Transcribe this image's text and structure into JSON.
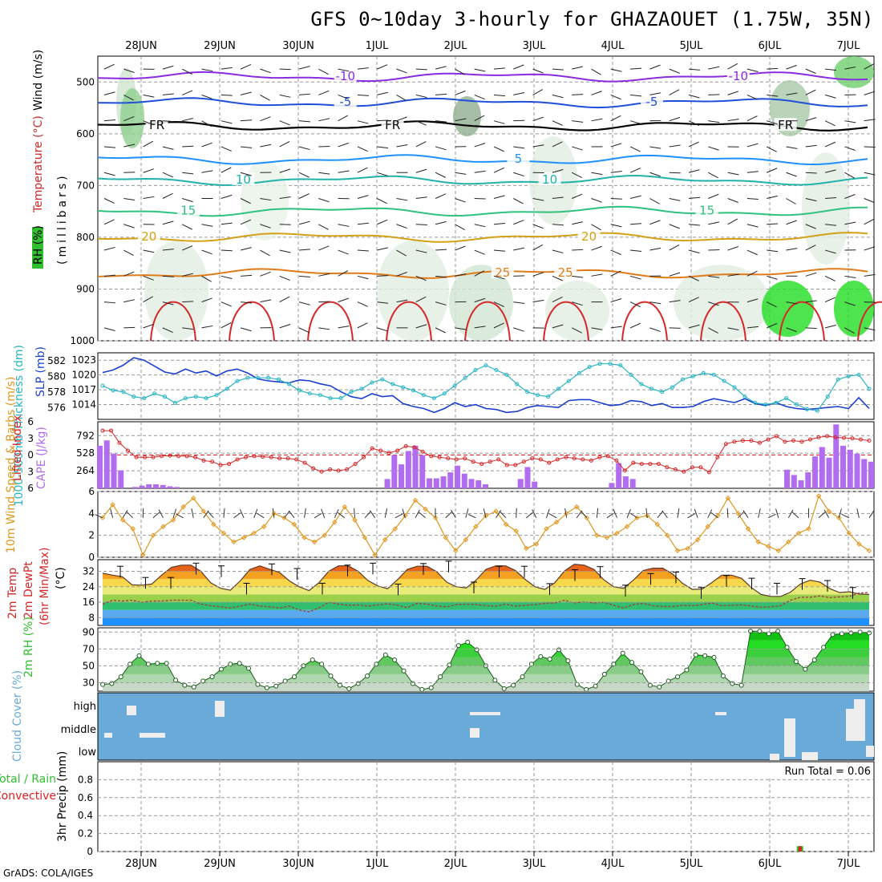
{
  "title": "GFS 0~10day 3-hourly for GHAZAOUET (1.75W, 35N)",
  "credit": "GrADS: COLA/IGES",
  "dates": [
    "28JUN",
    "29JUN",
    "30JUN",
    "1JUL",
    "2JUL",
    "3JUL",
    "4JUL",
    "5JUL",
    "6JUL",
    "7JUL"
  ],
  "colors": {
    "temp_neg10": "#8a2be2",
    "temp_neg5": "#1f4fd8",
    "freezing": "#000000",
    "temp5": "#1e90ff",
    "temp10": "#20b2aa",
    "temp15": "#2ec27e",
    "temp20": "#d4a017",
    "temp25": "#e07b1a",
    "temp30": "#d62728",
    "slp": "#1a3fd0",
    "thickness": "#29b5c4",
    "li": "#d62728",
    "cape": "#b26cf0",
    "wind": "#e0961e",
    "rh": "#2fbf2f",
    "cloud": "#6aaad8",
    "convective": "#e02020"
  },
  "chart_data": [
    {
      "type": "contour",
      "name": "upper-air",
      "ylabel": "(millibars)",
      "side_labels": [
        "RH (%)",
        "Temperature (°C)",
        "Wind (m/s)"
      ],
      "ylim": [
        1000,
        450
      ],
      "yticks": [
        500,
        600,
        700,
        800,
        900,
        1000
      ],
      "isotherms": [
        {
          "label": "-10",
          "pressure": 490,
          "labels_at_day": [
            2.6,
            7.6
          ]
        },
        {
          "label": "-5",
          "pressure": 540,
          "labels_at_day": [
            2.6,
            6.5
          ]
        },
        {
          "label": "FR",
          "pressure": 585,
          "labels_at_day": [
            0.2,
            3.2,
            8.2
          ]
        },
        {
          "label": "5",
          "pressure": 650,
          "labels_at_day": [
            4.8
          ]
        },
        {
          "label": "10",
          "pressure": 690,
          "labels_at_day": [
            1.3,
            5.2
          ]
        },
        {
          "label": "15",
          "pressure": 750,
          "labels_at_day": [
            0.6,
            7.2
          ]
        },
        {
          "label": "20",
          "pressure": 800,
          "labels_at_day": [
            0.1,
            5.7
          ]
        },
        {
          "label": "25",
          "pressure": 870,
          "labels_at_day": [
            4.6,
            5.4
          ]
        }
      ]
    },
    {
      "type": "line",
      "name": "slp-thickness",
      "left_label": "1000-500mb Thickness (dm)",
      "right_label": "SLP (mb)",
      "left_ticks": [
        576,
        578,
        580,
        582
      ],
      "right_ticks": [
        1014,
        1017,
        1020,
        1023
      ],
      "x_days": [
        0,
        0.125,
        0.25,
        0.375,
        0.5,
        0.625,
        0.75,
        0.875,
        1,
        1.125,
        1.25,
        1.375,
        1.5,
        1.625,
        1.75,
        1.875,
        2,
        2.125,
        2.25,
        2.375,
        2.5,
        2.625,
        2.75,
        2.875,
        3,
        3.125,
        3.25,
        3.375,
        3.5,
        3.625,
        3.75,
        3.875,
        4,
        4.125,
        4.25,
        4.375,
        4.5,
        4.625,
        4.75,
        4.875,
        5,
        5.125,
        5.25,
        5.375,
        5.5,
        5.625,
        5.75,
        5.875,
        6,
        6.125,
        6.25,
        6.375,
        6.5,
        6.625,
        6.75,
        6.875,
        7,
        7.125,
        7.25,
        7.375,
        7.5,
        7.625,
        7.75,
        7.875,
        8,
        8.125,
        8.25,
        8.375,
        8.5,
        8.625,
        8.75,
        8.875,
        9,
        9.125,
        9.25
      ],
      "series": [
        {
          "name": "SLP (mb)",
          "axis": "right",
          "values": [
            1020.5,
            1021,
            1022,
            1023.5,
            1023,
            1021.8,
            1020.6,
            1020.2,
            1021.2,
            1020.4,
            1020.8,
            1019.8,
            1020.8,
            1021.2,
            1020.4,
            1019.2,
            1018.8,
            1018.6,
            1018.4,
            1019,
            1018.8,
            1018.2,
            1017.8,
            1016.6,
            1015.6,
            1015.2,
            1016.2,
            1015.6,
            1015.8,
            1014.2,
            1013.6,
            1013.2,
            1012.4,
            1013.2,
            1014.4,
            1013.6,
            1014,
            1013.2,
            1013,
            1012.4,
            1012.6,
            1013.4,
            1013.8,
            1013.6,
            1013.4,
            1014.8,
            1015,
            1015,
            1014.4,
            1013.8,
            1014,
            1014.8,
            1014.6,
            1013.8,
            1014.2,
            1013.4,
            1013.4,
            1013.6,
            1014.6,
            1015.2,
            1014.8,
            1014.4,
            1015.2,
            1014.2,
            1013.8,
            1014.4,
            1013.6,
            1013.2,
            1013,
            1013.2,
            1013.4,
            1013.6,
            1013.2,
            1015.4,
            1013.2
          ]
        },
        {
          "name": "1000-500mb Thickness (dm)",
          "axis": "left",
          "values": [
            578.8,
            578.2,
            578,
            577.4,
            577.2,
            577.8,
            577.4,
            576.6,
            577.2,
            577.4,
            577.2,
            577.6,
            578.4,
            579.4,
            579.8,
            579.8,
            579.8,
            579.6,
            579,
            578.2,
            577.8,
            577.6,
            577.2,
            577.2,
            578,
            578.4,
            579.2,
            579.6,
            579,
            578.6,
            578.2,
            577.6,
            577.2,
            577.8,
            578.8,
            579.8,
            580.8,
            581.4,
            580.8,
            580.2,
            579,
            578,
            577.6,
            577.4,
            578.4,
            579.4,
            580.4,
            581.2,
            581.6,
            581.6,
            581.4,
            580.2,
            579,
            578.4,
            578,
            578.6,
            579.6,
            580,
            580.4,
            580.2,
            579.4,
            578.6,
            577.4,
            576.6,
            576.4,
            576.6,
            577.2,
            576.4,
            575.8,
            575.6,
            577.4,
            579.6,
            580,
            580.2,
            578.4
          ]
        }
      ]
    },
    {
      "type": "bar+line",
      "name": "cape-li",
      "left_label": "Lifted Index",
      "right_label": "CAPE (J/kg)",
      "li_ticks": [
        -6,
        -3,
        0,
        3,
        6
      ],
      "cape_ticks": [
        264,
        528,
        792
      ],
      "series": [
        {
          "name": "CAPE (J/kg)",
          "values": [
            640,
            720,
            520,
            270,
            0,
            20,
            40,
            60,
            60,
            50,
            30,
            20,
            0,
            0,
            0,
            0,
            0,
            0,
            0,
            0,
            0,
            0,
            0,
            0,
            0,
            0,
            0,
            0,
            0,
            0,
            0,
            0,
            0,
            0,
            0,
            0,
            0,
            0,
            0,
            0,
            0,
            140,
            500,
            360,
            560,
            640,
            500,
            150,
            150,
            180,
            240,
            340,
            220,
            140,
            120,
            60,
            0,
            0,
            0,
            0,
            140,
            320,
            100,
            0,
            0,
            0,
            0,
            0,
            0,
            0,
            0,
            0,
            0,
            80,
            380,
            180,
            140,
            0,
            0,
            0,
            0,
            0,
            0,
            0,
            0,
            0,
            0,
            0,
            0,
            0,
            0,
            0,
            0,
            0,
            0,
            0,
            0,
            0,
            280,
            200,
            120,
            240,
            480,
            620,
            460,
            960,
            640,
            580,
            520,
            440,
            400
          ]
        },
        {
          "name": "Lifted Index",
          "values": [
            -4.4,
            -4.4,
            -2.2,
            -0.8,
            0.4,
            0.4,
            0.4,
            0.2,
            0.1,
            0.2,
            0.2,
            0.4,
            1,
            1.2,
            1.8,
            1.6,
            0.8,
            0.4,
            0.2,
            0.3,
            0.4,
            0.6,
            0.6,
            0.8,
            1.4,
            2.4,
            3,
            2.6,
            2.8,
            2.6,
            1.6,
            0.4,
            -1.2,
            -0.8,
            -0.4,
            -0.8,
            -1.6,
            -1.4,
            -0.6,
            0.2,
            0.4,
            0.6,
            0.8,
            0.6,
            1.2,
            1.6,
            1.2,
            0.8,
            1.8,
            1.8,
            1.2,
            0.6,
            0.8,
            1.4,
            0.8,
            0.4,
            0.6,
            0.8,
            1,
            0.4,
            0.2,
            1,
            2.8,
            1.4,
            1.6,
            1.6,
            1.6,
            2.2,
            2.6,
            3,
            2.2,
            2.2,
            3.1,
            0.4,
            -2,
            -2.4,
            -2.6,
            -2.6,
            -2.2,
            -2.8,
            -3.4,
            -2.4,
            -2.6,
            -2.4,
            -2.8,
            -3.2,
            -3.4,
            -3.2,
            -3.1,
            -3,
            -2.8,
            -2.6
          ]
        }
      ]
    },
    {
      "type": "line",
      "name": "wind-10m",
      "ylabel": "10m Wind Speed & Barbs (m/s)",
      "yticks": [
        0,
        2,
        4,
        6
      ],
      "series": [
        {
          "name": "10m Wind Speed (m/s)",
          "values": [
            3.6,
            4.8,
            3.4,
            2.6,
            0.2,
            2,
            2.8,
            3.4,
            4.6,
            5.4,
            4.2,
            3,
            2.2,
            1.4,
            1.8,
            2.2,
            2.8,
            4,
            3.6,
            3,
            1.8,
            1.4,
            2,
            3.2,
            4.6,
            3.4,
            1.8,
            0.2,
            1.6,
            2.6,
            3.8,
            5.2,
            4.4,
            3.6,
            1.8,
            0.6,
            1.6,
            2.8,
            3.8,
            4.2,
            3,
            2.4,
            0.8,
            1.2,
            2.6,
            3.2,
            4,
            4.6,
            3.6,
            2,
            1.8,
            2.2,
            2.8,
            3.6,
            3.8,
            3,
            2,
            0.6,
            0.8,
            1.6,
            2.8,
            3.8,
            5.4,
            4,
            2.6,
            1.4,
            1,
            0.6,
            1.4,
            2.2,
            2.6,
            5.6,
            4.2,
            3.6,
            2.2,
            1.2,
            0.6
          ]
        }
      ]
    },
    {
      "type": "area",
      "name": "temp-2m",
      "ylabel": "2m Temp 2m DewPt (6hr Min/Max) (°C)",
      "yticks": [
        8,
        16,
        24,
        32
      ],
      "series": [
        {
          "name": "2m Temp (°C)",
          "values": [
            31,
            30,
            29.2,
            25,
            24.8,
            25.4,
            30,
            34,
            35.2,
            35.2,
            32,
            26,
            23.2,
            22.2,
            27,
            33,
            34.8,
            33,
            31.4,
            27,
            24,
            22,
            26,
            32,
            34.8,
            34.8,
            32,
            27.2,
            24.4,
            23,
            27.6,
            33,
            34.6,
            34.6,
            31.8,
            26.4,
            24,
            23.4,
            27.4,
            33,
            34.8,
            34.8,
            32.4,
            27.8,
            24,
            22.6,
            26,
            32.2,
            35.6,
            35.2,
            33,
            27.6,
            24,
            23.2,
            27.4,
            32.4,
            33.6,
            33.6,
            30.6,
            25.8,
            22.6,
            22.8,
            26.2,
            30,
            30,
            28.4,
            23.6,
            20,
            19,
            19,
            21.2,
            25.4,
            27.4,
            26.4,
            23,
            21,
            21.4,
            20.2,
            20
          ]
        },
        {
          "name": "2m DewPt (°C)",
          "values": [
            15,
            17,
            16.6,
            17,
            16,
            16.6,
            16.6,
            17,
            17,
            17,
            15,
            14.2,
            13.6,
            13,
            14,
            15,
            14,
            13.6,
            13,
            14,
            12,
            11,
            13,
            16,
            15,
            14.4,
            14.6,
            14,
            14.6,
            15.2,
            14.4,
            13.2,
            15.4,
            15,
            14,
            13.6,
            14.8,
            15,
            14.8,
            14.2,
            14,
            15,
            14,
            14.4,
            14.8,
            15.4,
            15.6,
            17,
            15.6,
            16.2,
            15.6,
            16,
            14.4,
            13,
            14.8,
            15.4,
            14.2,
            13.8,
            13.8,
            14.4,
            14.2,
            14.8,
            15.6,
            14.2,
            14.4,
            14.6,
            14,
            13.4,
            13.6,
            14.2,
            17,
            18.6,
            18.6,
            19.2,
            18.4,
            18.8,
            19,
            20.8,
            21
          ]
        },
        {
          "name": "Max (6hr, °C)",
          "values": [
            34.6,
            28.8,
            28.8,
            36.2,
            34.8,
            25.8,
            35.8,
            33.4,
            25.8,
            35.2,
            36.2,
            25.4,
            36,
            37.2,
            26.4,
            34.6,
            34.6,
            25.6,
            32.8,
            34.4,
            24.8,
            30.8,
            31.6,
            23.6,
            29.8,
            28.4,
            25.8,
            28.2,
            27.2,
            23.6
          ]
        }
      ]
    },
    {
      "type": "area",
      "name": "rh-2m",
      "ylabel": "2m RH (%)",
      "yticks": [
        30,
        50,
        70,
        90
      ],
      "series": [
        {
          "name": "2m RH (%)",
          "values": [
            28,
            29,
            37,
            52,
            62,
            52,
            53,
            53,
            33,
            27,
            25,
            32,
            37,
            46,
            52,
            53,
            47,
            28,
            24,
            26,
            32,
            37,
            50,
            57,
            52,
            38,
            27,
            23,
            29,
            38,
            52,
            63,
            57,
            44,
            29,
            22,
            24,
            37,
            51,
            74,
            78,
            69,
            50,
            33,
            23,
            27,
            37,
            52,
            61,
            58,
            69,
            56,
            28,
            22,
            26,
            40,
            52,
            65,
            54,
            43,
            27,
            25,
            32,
            37,
            45,
            63,
            62,
            60,
            38,
            29,
            27,
            91,
            91,
            88,
            91,
            72,
            55,
            46,
            57,
            72,
            87,
            88,
            89,
            90,
            89
          ]
        }
      ]
    },
    {
      "type": "heatmap",
      "name": "cloud-cover",
      "ylabel": "Cloud Cover (%)",
      "levels": [
        "high",
        "middle",
        "low"
      ]
    },
    {
      "type": "bar",
      "name": "precip-3hr",
      "ylabel": "3hr Precip (mm)",
      "left_side_label": "Total / Rain",
      "left_side_label2": "Convective",
      "yticks": [
        0,
        0.2,
        0.4,
        0.6,
        0.8
      ],
      "run_total": "Run Total = 0.06",
      "series": [
        {
          "name": "Total / Rain (mm)",
          "day": 8.375,
          "value": 0.06
        }
      ]
    }
  ]
}
